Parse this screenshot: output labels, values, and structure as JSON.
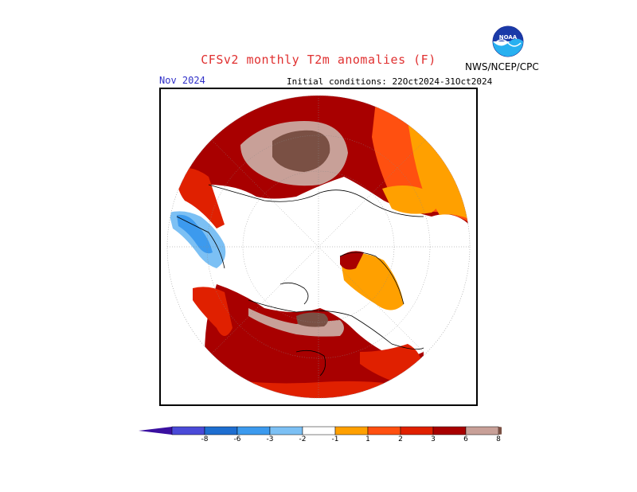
{
  "title": "CFSv2 monthly T2m anomalies (F)",
  "forecast_month": "Nov 2024",
  "initial_conditions": "Initial conditions: 22Oct2024-31Oct2024",
  "agency": "NWS/NCEP/CPC",
  "logo_text": "NOAA",
  "legend": {
    "labels": [
      "-8",
      "-6",
      "-3",
      "-2",
      "-1",
      "1",
      "2",
      "3",
      "6",
      "8"
    ],
    "colors": [
      "#3a10a0",
      "#4a4ad8",
      "#1e6ed0",
      "#3c9aee",
      "#7cc0f4",
      "#ffffff",
      "#ffa000",
      "#ff5010",
      "#e02000",
      "#a80000",
      "#c8a098",
      "#7a5044"
    ]
  },
  "colors": {
    "title": "#e03030",
    "month": "#3030c8",
    "anom_dark_red": "#a80000",
    "anom_red": "#e02000",
    "anom_orange_red": "#ff5010",
    "anom_orange": "#ffa000",
    "anom_pink": "#c8a098",
    "anom_brown": "#7a5044",
    "anom_light_blue": "#7cc0f4",
    "anom_blue": "#3c9aee"
  }
}
